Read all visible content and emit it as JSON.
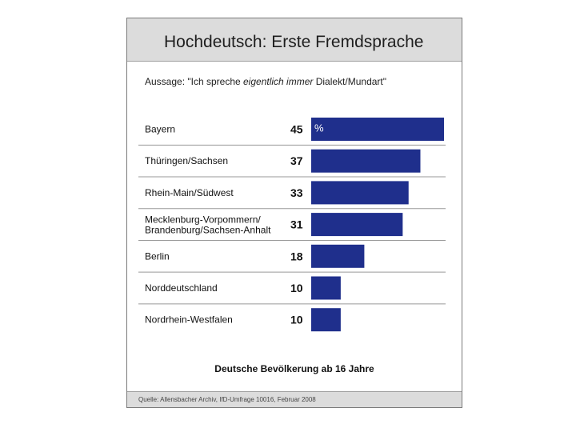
{
  "title": "Hochdeutsch: Erste Fremdsprache",
  "subtitle": {
    "prefix": "Aussage: \"Ich spreche ",
    "emphasis": "eigentlich immer",
    "suffix": " Dialekt/Mundart\""
  },
  "footer_label": "Deutsche Bevölkerung ab 16 Jahre",
  "source": "Quelle: Allensbacher Archiv, IfD-Umfrage 10016, Februar 2008",
  "colors": {
    "bar": "#1f2f8c",
    "separator": "#9a9a9a",
    "header_bg": "#dcdcdc"
  },
  "chart_data": {
    "type": "bar",
    "orientation": "horizontal",
    "categories": [
      [
        "Bayern"
      ],
      [
        "Thüringen/Sachsen"
      ],
      [
        "Rhein-Main/Südwest"
      ],
      [
        "Mecklenburg-Vorpommern/",
        "Brandenburg/Sachsen-Anhalt"
      ],
      [
        "Berlin"
      ],
      [
        "Norddeutschland"
      ],
      [
        "Nordrhein-Westfalen"
      ]
    ],
    "values": [
      45,
      37,
      33,
      31,
      18,
      10,
      10
    ],
    "unit_label": "%",
    "xlim": [
      0,
      45
    ],
    "grid": false,
    "legend": false
  }
}
